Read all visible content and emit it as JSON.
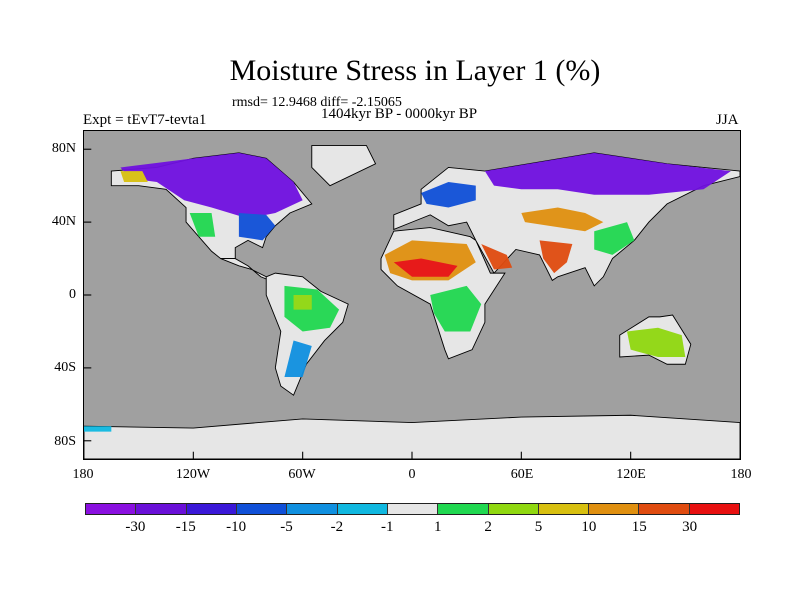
{
  "title": "Moisture Stress in Layer 1 (%)",
  "stats": "rmsd= 12.9468 diff= -2.15065",
  "period": "1404kyr BP - 0000kyr BP",
  "experiment": "Expt = tEvT7-tevta1",
  "season": "JJA",
  "lat_ticks": [
    "80N",
    "40N",
    "0",
    "40S",
    "80S"
  ],
  "lon_ticks": [
    "180",
    "120W",
    "60W",
    "0",
    "60E",
    "120E",
    "180"
  ],
  "colorbar": {
    "colors": [
      "#8a10e0",
      "#6a10d8",
      "#3a18d8",
      "#1050d8",
      "#1090e0",
      "#10b8e0",
      "#e6e6e6",
      "#20d850",
      "#90d810",
      "#d8c010",
      "#e09010",
      "#e04c10",
      "#e81010"
    ],
    "labels": [
      "-30",
      "-15",
      "-10",
      "-5",
      "-2",
      "-1",
      "1",
      "2",
      "5",
      "10",
      "15",
      "30"
    ]
  },
  "colors": {
    "ocean": "#a0a0a0",
    "land": "#e6e6e6"
  }
}
